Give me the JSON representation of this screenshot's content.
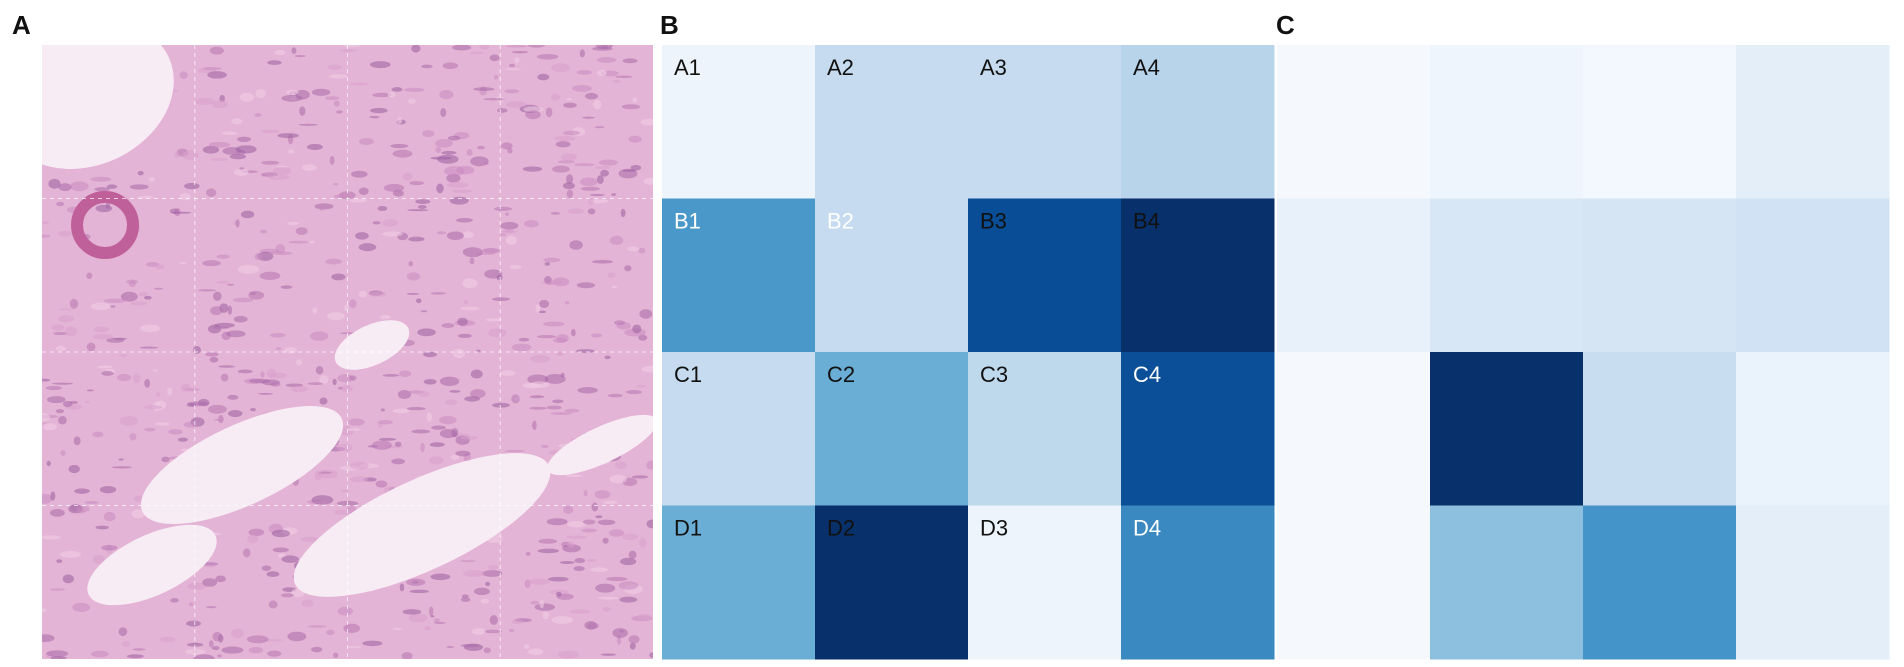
{
  "panels": [
    {
      "label": "A"
    },
    {
      "label": "B",
      "cells": [
        [
          "A1",
          "A2",
          "A3",
          "A4"
        ],
        [
          "B1",
          "B2",
          "B3",
          "B4"
        ],
        [
          "C1",
          "C2",
          "C3",
          "C4"
        ],
        [
          "D1",
          "D2",
          "D3",
          "D4"
        ]
      ],
      "colors": [
        [
          "#eef4fb",
          "#c6dbef",
          "#c6dbef",
          "#b7d4ea"
        ],
        [
          "#4a98c9",
          "#c6dbef",
          "#084d96",
          "#08306b"
        ],
        [
          "#c6dbef",
          "#6aaed6",
          "#bed8ec",
          "#0a4f97"
        ],
        [
          "#6aaed6",
          "#08306b",
          "#eef4fb",
          "#3a89c1"
        ]
      ]
    },
    {
      "label": "C",
      "colors": [
        [
          "#f5f9fe",
          "#eef5fc",
          "#f3f8fe",
          "#e3eef8"
        ],
        [
          "#e8f0fa",
          "#d8e7f5",
          "#d5e5f4",
          "#d0e2f3"
        ],
        [
          "#f5f9fe",
          "#08306b",
          "#c9ddf0",
          "#eaf2fb"
        ],
        [
          "#f5f9fe",
          "#8cc0de",
          "#4594c9",
          "#e3eef8"
        ]
      ]
    }
  ]
}
